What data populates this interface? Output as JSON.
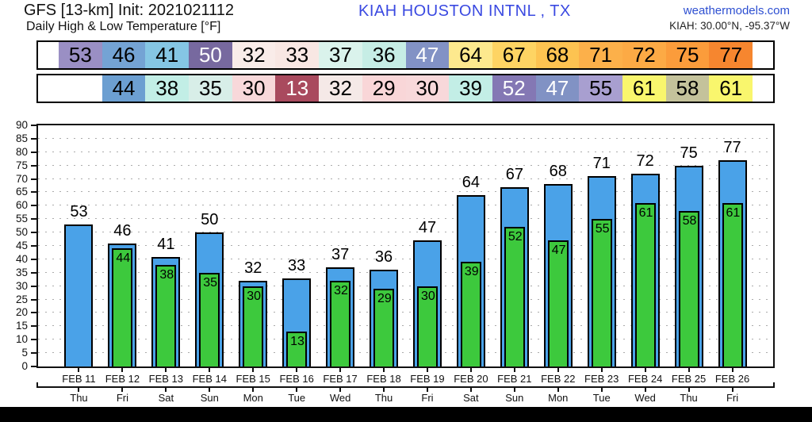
{
  "header": {
    "model": "GFS [13-km] Init: 2021021112",
    "subtitle": "Daily High & Low Temperature [°F]",
    "station": "KIAH HOUSTON INTNL , TX",
    "site": "weathermodels.com",
    "coords": "KIAH: 30.00°N, -95.37°W"
  },
  "strip_high": [
    {
      "v": "53",
      "bg": "#9a8fc4",
      "fg": "#000000"
    },
    {
      "v": "46",
      "bg": "#74a3d4",
      "fg": "#000000"
    },
    {
      "v": "41",
      "bg": "#85c6e4",
      "fg": "#000000"
    },
    {
      "v": "50",
      "bg": "#77699f",
      "fg": "#ffffff"
    },
    {
      "v": "32",
      "bg": "#f9ece9",
      "fg": "#000000"
    },
    {
      "v": "33",
      "bg": "#f8e7e3",
      "fg": "#000000"
    },
    {
      "v": "37",
      "bg": "#daf3ec",
      "fg": "#000000"
    },
    {
      "v": "36",
      "bg": "#c6ede5",
      "fg": "#000000"
    },
    {
      "v": "47",
      "bg": "#8292c5",
      "fg": "#ffffff"
    },
    {
      "v": "64",
      "bg": "#fde98e",
      "fg": "#000000"
    },
    {
      "v": "67",
      "bg": "#fed463",
      "fg": "#000000"
    },
    {
      "v": "68",
      "bg": "#fdc351",
      "fg": "#000000"
    },
    {
      "v": "71",
      "bg": "#fcb04a",
      "fg": "#000000"
    },
    {
      "v": "72",
      "bg": "#fcaa45",
      "fg": "#000000"
    },
    {
      "v": "75",
      "bg": "#fb9c3b",
      "fg": "#000000"
    },
    {
      "v": "77",
      "bg": "#f6862f",
      "fg": "#000000"
    }
  ],
  "strip_low": [
    {
      "v": "",
      "bg": "#ffffff",
      "fg": "#000000"
    },
    {
      "v": "44",
      "bg": "#6c9fd1",
      "fg": "#000000"
    },
    {
      "v": "38",
      "bg": "#c2eee6",
      "fg": "#000000"
    },
    {
      "v": "35",
      "bg": "#d8eee8",
      "fg": "#000000"
    },
    {
      "v": "30",
      "bg": "#f8d8da",
      "fg": "#000000"
    },
    {
      "v": "13",
      "bg": "#a94a5e",
      "fg": "#ffffff"
    },
    {
      "v": "32",
      "bg": "#f5e9e7",
      "fg": "#000000"
    },
    {
      "v": "29",
      "bg": "#f9d6d8",
      "fg": "#000000"
    },
    {
      "v": "30",
      "bg": "#f8d8da",
      "fg": "#000000"
    },
    {
      "v": "39",
      "bg": "#c3eee6",
      "fg": "#000000"
    },
    {
      "v": "52",
      "bg": "#8478b4",
      "fg": "#ffffff"
    },
    {
      "v": "47",
      "bg": "#8192c4",
      "fg": "#ffffff"
    },
    {
      "v": "55",
      "bg": "#a89fd0",
      "fg": "#000000"
    },
    {
      "v": "61",
      "bg": "#f9f66d",
      "fg": "#000000"
    },
    {
      "v": "58",
      "bg": "#c4c29b",
      "fg": "#000000"
    },
    {
      "v": "61",
      "bg": "#f9f66d",
      "fg": "#000000"
    }
  ],
  "chart_data": {
    "type": "bar",
    "title": "Daily High & Low Temperature [°F]",
    "station": "KIAH HOUSTON INTNL , TX",
    "categories": [
      "FEB 11",
      "FEB 12",
      "FEB 13",
      "FEB 14",
      "FEB 15",
      "FEB 16",
      "FEB 17",
      "FEB 18",
      "FEB 19",
      "FEB 20",
      "FEB 21",
      "FEB 22",
      "FEB 23",
      "FEB 24",
      "FEB 25",
      "FEB 26"
    ],
    "weekdays": [
      "Thu",
      "Fri",
      "Sat",
      "Sun",
      "Mon",
      "Tue",
      "Wed",
      "Thu",
      "Fri",
      "Sat",
      "Sun",
      "Mon",
      "Tue",
      "Wed",
      "Thu",
      "Fri"
    ],
    "series": [
      {
        "name": "Daily High",
        "color": "#4aa2e8",
        "values": [
          53,
          46,
          41,
          50,
          32,
          33,
          37,
          36,
          47,
          64,
          67,
          68,
          71,
          72,
          75,
          77
        ]
      },
      {
        "name": "Daily Low",
        "color": "#3dc93d",
        "values": [
          null,
          44,
          38,
          35,
          30,
          13,
          32,
          29,
          30,
          39,
          52,
          47,
          55,
          61,
          58,
          61
        ]
      }
    ],
    "ylabel": "",
    "xlabel": "",
    "ylim": [
      0,
      90
    ],
    "ytick_step": 5,
    "grid": "dotted-horizontal",
    "bar_outline": "#000000",
    "bar_label_color": "#000000",
    "legend": "none"
  }
}
